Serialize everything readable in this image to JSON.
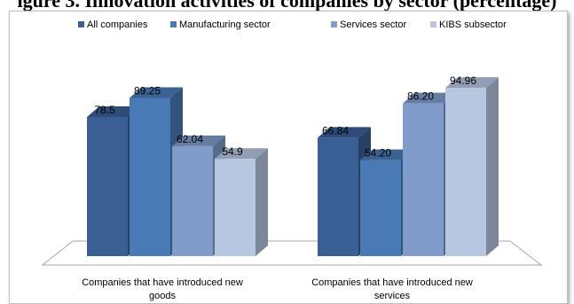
{
  "title_partial": "igure 3. Innovation activities of companies by sector (percentage)",
  "chart_data": {
    "type": "bar",
    "categories": [
      "Companies that have introduced new goods",
      "Companies that have introduced new services"
    ],
    "category_lines": [
      [
        "Companies that have introduced new",
        "goods"
      ],
      [
        "Companies that have introduced new",
        "services"
      ]
    ],
    "series": [
      {
        "name": "All companies",
        "values": [
          78.5,
          66.84
        ],
        "labels": [
          "78.5",
          "66.84"
        ],
        "color": "#3a5f95"
      },
      {
        "name": "Manufacturing sector",
        "values": [
          89.25,
          54.2
        ],
        "labels": [
          "89.25",
          "54.20"
        ],
        "color": "#4a7ab5"
      },
      {
        "name": "Services sector",
        "values": [
          62.04,
          86.2
        ],
        "labels": [
          "62.04",
          "86.20"
        ],
        "color": "#7f9cca"
      },
      {
        "name": "KIBS subsector",
        "values": [
          54.9,
          94.96
        ],
        "labels": [
          "54.9",
          "94.96"
        ],
        "color": "#b7c6e1"
      }
    ],
    "ylim": [
      0,
      100
    ],
    "legend_position": "top",
    "style": "3d-column",
    "grid": false
  }
}
